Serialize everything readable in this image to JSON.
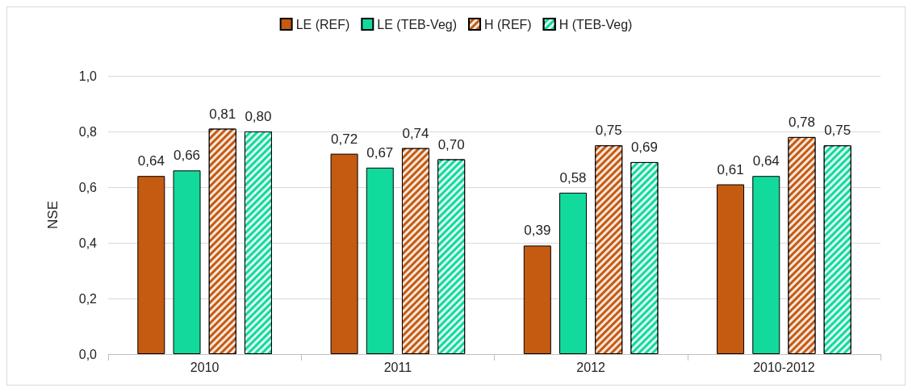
{
  "chart_data": {
    "type": "bar",
    "ylabel": "NSE",
    "categories": [
      "2010",
      "2011",
      "2012",
      "2010-2012"
    ],
    "series": [
      {
        "name": "LE (REF)",
        "color": "#c55a11",
        "values": [
          0.64,
          0.72,
          0.39,
          0.61
        ],
        "value_labels": [
          "0,64",
          "0,72",
          "0,39",
          "0,61"
        ]
      },
      {
        "name": "LE (TEB-Veg)",
        "color": "#12d99c",
        "values": [
          0.66,
          0.67,
          0.58,
          0.64
        ],
        "value_labels": [
          "0,66",
          "0,67",
          "0,58",
          "0,64"
        ]
      },
      {
        "name": "H (REF)",
        "color": "#c55a11",
        "values": [
          0.81,
          0.74,
          0.75,
          0.78
        ],
        "value_labels": [
          "0,81",
          "0,74",
          "0,75",
          "0,78"
        ]
      },
      {
        "name": "H (TEB-Veg)",
        "color": "#12d99c",
        "values": [
          0.8,
          0.7,
          0.69,
          0.75
        ],
        "value_labels": [
          "0,80",
          "0,70",
          "0,69",
          "0,75"
        ]
      }
    ],
    "ylim": [
      0,
      1
    ],
    "yticks": [
      {
        "value": 0,
        "label": "0,0"
      },
      {
        "value": 0.2,
        "label": "0,2"
      },
      {
        "value": 0.4,
        "label": "0,4"
      },
      {
        "value": 0.6,
        "label": "0,6"
      },
      {
        "value": 0.8,
        "label": "0,8"
      },
      {
        "value": 1,
        "label": "1,0"
      }
    ],
    "grid": "y",
    "legend": "top"
  }
}
